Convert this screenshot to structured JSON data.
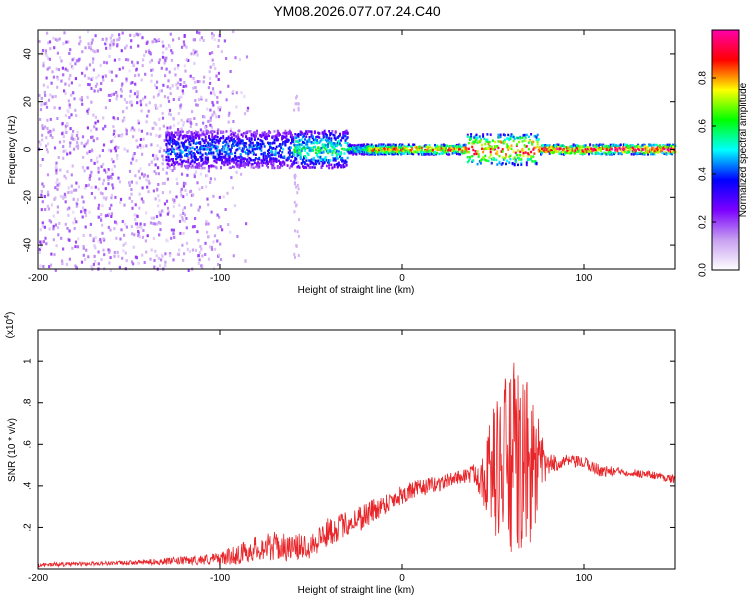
{
  "title": "YM08.2026.077.07.24.C40",
  "chart_data": [
    {
      "type": "heatmap",
      "name": "spectrogram",
      "xlabel": "Height of straight line (km)",
      "ylabel": "Frequency (Hz)",
      "xlim": [
        -200,
        150
      ],
      "ylim": [
        -50,
        50
      ],
      "xticks": [
        -200,
        -100,
        0,
        100
      ],
      "yticks": [
        -40,
        -20,
        0,
        20,
        40
      ],
      "colorbar": {
        "label": "Normalized spectral amplitude",
        "range": [
          0,
          1
        ],
        "ticks": [
          0.0,
          0.2,
          0.4,
          0.6,
          0.8
        ],
        "colormap": [
          "#ffffff",
          "#c8a0f0",
          "#7b00ff",
          "#0000ff",
          "#00ffff",
          "#00ff00",
          "#ffff00",
          "#ff0000",
          "#ff00aa"
        ]
      },
      "features": [
        {
          "description": "scattered noise",
          "x_range": [
            -200,
            -100
          ],
          "frequency_range": [
            -50,
            50
          ],
          "amplitude": 0.15
        },
        {
          "description": "narrow band near 0 Hz",
          "x_range": [
            -130,
            150
          ],
          "center_frequency": 0,
          "peak_amplitude": 1.0
        }
      ]
    },
    {
      "type": "line",
      "name": "snr",
      "xlabel": "Height of straight line (km)",
      "ylabel": "SNR (10 * v/v)",
      "y_multiplier": "(x10^4)",
      "y_multiplier_base": "(x10",
      "y_multiplier_exp": "4",
      "y_multiplier_close": ")",
      "xlim": [
        -200,
        150
      ],
      "ylim": [
        0,
        1.15
      ],
      "xticks": [
        -200,
        -100,
        0,
        100
      ],
      "yticks": [
        0.2,
        0.4,
        0.6,
        0.8,
        1
      ],
      "series": [
        {
          "name": "SNR",
          "color": "#e8262a",
          "x": [
            -200,
            -150,
            -120,
            -100,
            -90,
            -80,
            -70,
            -60,
            -50,
            -40,
            -30,
            -20,
            -10,
            0,
            10,
            20,
            30,
            40,
            45,
            50,
            55,
            60,
            65,
            70,
            75,
            80,
            90,
            100,
            110,
            120,
            130,
            140,
            150
          ],
          "y": [
            0.02,
            0.03,
            0.04,
            0.05,
            0.07,
            0.1,
            0.11,
            0.1,
            0.12,
            0.18,
            0.22,
            0.26,
            0.31,
            0.36,
            0.39,
            0.41,
            0.44,
            0.46,
            0.45,
            0.48,
            0.5,
            0.52,
            0.49,
            0.5,
            0.48,
            0.5,
            0.52,
            0.51,
            0.47,
            0.47,
            0.46,
            0.45,
            0.43
          ],
          "noise_amplitude": [
            0.01,
            0.01,
            0.02,
            0.03,
            0.05,
            0.06,
            0.07,
            0.06,
            0.07,
            0.07,
            0.06,
            0.07,
            0.05,
            0.05,
            0.04,
            0.04,
            0.03,
            0.05,
            0.15,
            0.3,
            0.4,
            0.5,
            0.45,
            0.4,
            0.25,
            0.05,
            0.03,
            0.03,
            0.03,
            0.02,
            0.02,
            0.02,
            0.02
          ]
        }
      ]
    }
  ]
}
